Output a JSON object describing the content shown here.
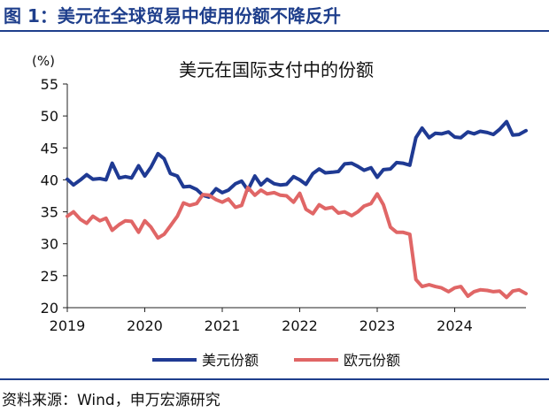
{
  "figure_title": "图 1：美元在全球贸易中使用份额不降反升",
  "source": "资料来源：Wind，申万宏源研究",
  "colors": {
    "usd": "#1f3a93",
    "eur": "#e06666",
    "title": "#1f3f8c"
  },
  "chart_data": {
    "type": "line",
    "title": "美元在国际支付中的份额",
    "ylabel": "(%)",
    "xlabel": "",
    "ylim": [
      20,
      55
    ],
    "yticks": [
      "20",
      "25",
      "30",
      "35",
      "40",
      "45",
      "50",
      "55"
    ],
    "xlim": [
      2019.0,
      2024.92
    ],
    "xticks": [
      "2019",
      "2020",
      "2021",
      "2022",
      "2023",
      "2024"
    ],
    "grid": false,
    "legend_position": "bottom",
    "x": [
      2019.0,
      2019.08,
      2019.17,
      2019.25,
      2019.33,
      2019.42,
      2019.5,
      2019.58,
      2019.67,
      2019.75,
      2019.83,
      2019.92,
      2020.0,
      2020.08,
      2020.17,
      2020.25,
      2020.33,
      2020.42,
      2020.5,
      2020.58,
      2020.67,
      2020.75,
      2020.83,
      2020.92,
      2021.0,
      2021.08,
      2021.17,
      2021.25,
      2021.33,
      2021.42,
      2021.5,
      2021.58,
      2021.67,
      2021.75,
      2021.83,
      2021.92,
      2022.0,
      2022.08,
      2022.17,
      2022.25,
      2022.33,
      2022.42,
      2022.5,
      2022.58,
      2022.67,
      2022.75,
      2022.83,
      2022.92,
      2023.0,
      2023.08,
      2023.17,
      2023.25,
      2023.33,
      2023.42,
      2023.5,
      2023.58,
      2023.67,
      2023.75,
      2023.83,
      2023.92,
      2024.0,
      2024.08,
      2024.17,
      2024.25,
      2024.33,
      2024.42,
      2024.5,
      2024.58,
      2024.67,
      2024.75,
      2024.83,
      2024.92
    ],
    "series": [
      {
        "name": "美元份额",
        "values": [
          40.1,
          39.2,
          40.0,
          40.8,
          40.1,
          40.2,
          40.0,
          42.6,
          40.3,
          40.5,
          40.3,
          42.2,
          40.6,
          42.0,
          44.1,
          43.3,
          41.0,
          40.6,
          38.9,
          39.0,
          38.5,
          37.6,
          37.3,
          38.6,
          38.0,
          38.4,
          39.4,
          39.8,
          38.4,
          40.6,
          39.2,
          40.1,
          39.4,
          39.2,
          39.3,
          40.5,
          40.0,
          39.3,
          41.0,
          41.7,
          41.1,
          41.2,
          41.3,
          42.5,
          42.6,
          42.1,
          41.5,
          41.9,
          40.4,
          41.6,
          41.7,
          42.7,
          42.6,
          42.3,
          46.6,
          48.1,
          46.6,
          47.3,
          47.2,
          47.5,
          46.7,
          46.6,
          47.5,
          47.2,
          47.6,
          47.4,
          47.1,
          47.9,
          49.1,
          47.0,
          47.1,
          47.7
        ]
      },
      {
        "name": "欧元份额",
        "values": [
          34.3,
          35.0,
          33.8,
          33.2,
          34.3,
          33.6,
          34.0,
          32.1,
          33.0,
          33.6,
          33.5,
          31.8,
          33.6,
          32.6,
          30.9,
          31.5,
          32.8,
          34.3,
          36.4,
          36.0,
          36.3,
          37.7,
          37.6,
          36.9,
          36.5,
          37.0,
          35.7,
          36.0,
          38.8,
          37.6,
          38.4,
          37.8,
          38.0,
          37.6,
          37.5,
          36.5,
          37.9,
          35.4,
          34.7,
          36.1,
          35.5,
          35.7,
          34.8,
          35.0,
          34.4,
          35.0,
          35.9,
          36.3,
          37.8,
          36.1,
          32.6,
          31.8,
          31.8,
          31.5,
          24.4,
          23.3,
          23.6,
          23.3,
          23.1,
          22.5,
          23.1,
          23.3,
          21.8,
          22.5,
          22.8,
          22.7,
          22.5,
          22.6,
          21.6,
          22.6,
          22.8,
          22.2
        ]
      }
    ]
  }
}
